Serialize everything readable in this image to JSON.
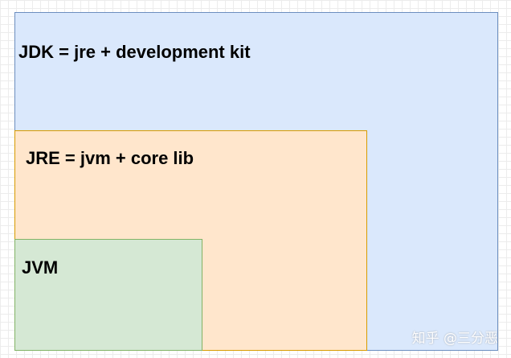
{
  "diagram": {
    "jdk": {
      "label": "JDK = jre + development kit",
      "fill": "#dae8fc",
      "stroke": "#6c8ebf"
    },
    "jre": {
      "label": "JRE = jvm + core lib",
      "fill": "#ffe6cc",
      "stroke": "#d79b00"
    },
    "jvm": {
      "label": "JVM",
      "fill": "#d5e8d4",
      "stroke": "#82b366"
    }
  },
  "watermark": {
    "text": "知乎 @三分恶"
  }
}
